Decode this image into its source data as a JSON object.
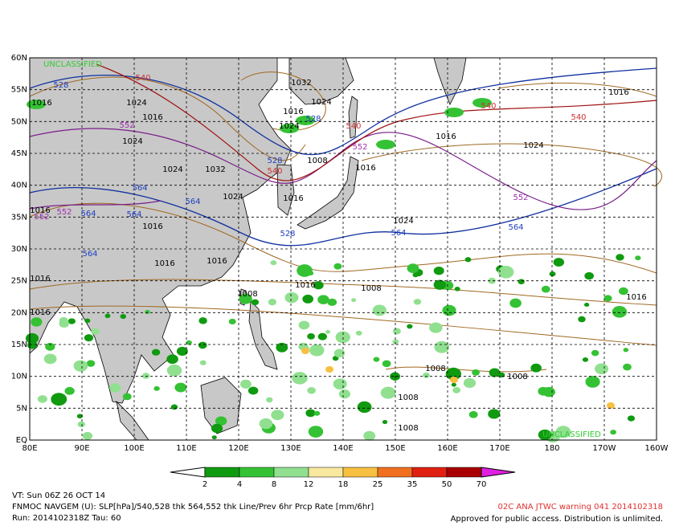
{
  "map": {
    "lat_labels": [
      "EQ",
      "5N",
      "10N",
      "15N",
      "20N",
      "25N",
      "30N",
      "35N",
      "40N",
      "45N",
      "50N",
      "55N",
      "60N"
    ],
    "lon_labels": [
      "80E",
      "90E",
      "100E",
      "110E",
      "120E",
      "130E",
      "140E",
      "150E",
      "160E",
      "170E",
      "180",
      "170W",
      "160W"
    ],
    "classification": [
      "UNCLASSIFIED",
      "UNCLASSIFIED"
    ],
    "contour_labels": [
      "1016",
      "1024",
      "1016",
      "1024",
      "1032",
      "1024",
      "1016",
      "1024",
      "1032",
      "1016",
      "1016",
      "1024",
      "1024",
      "1016",
      "1016",
      "1016",
      "1016",
      "1016",
      "1016",
      "1016",
      "1008",
      "1008",
      "1008",
      "1008",
      "1008",
      "1008",
      "1024",
      "1016",
      "1016",
      "1024",
      "1016",
      "1008",
      "528",
      "528",
      "528",
      "528",
      "540",
      "540",
      "540",
      "540",
      "540",
      "552",
      "552",
      "552",
      "552",
      "552",
      "564",
      "564",
      "564",
      "564",
      "564",
      "564",
      "564"
    ]
  },
  "colorbar": {
    "levels": [
      2,
      4,
      8,
      12,
      18,
      25,
      35,
      50,
      70
    ],
    "colors": [
      "#ffffff",
      "#109a10",
      "#34c234",
      "#90e090",
      "#f8e8a0",
      "#f8c040",
      "#f07020",
      "#e02010",
      "#a80000",
      "#900000",
      "#e020e0"
    ]
  },
  "footer": {
    "valid_time": "VT: Sun 06Z 26 OCT 14",
    "product": "FNMOC NAVGEM (U): SLP[hPa]/540,528 thk 564,552 thk Line/Prev 6hr Prcp Rate [mm/6hr]",
    "run": "Run: 2014102318Z Tau: 60",
    "warning": "02C ANA JTWC warning 041 2014102318",
    "release": "Approved for public access. Distribution is unlimited."
  }
}
